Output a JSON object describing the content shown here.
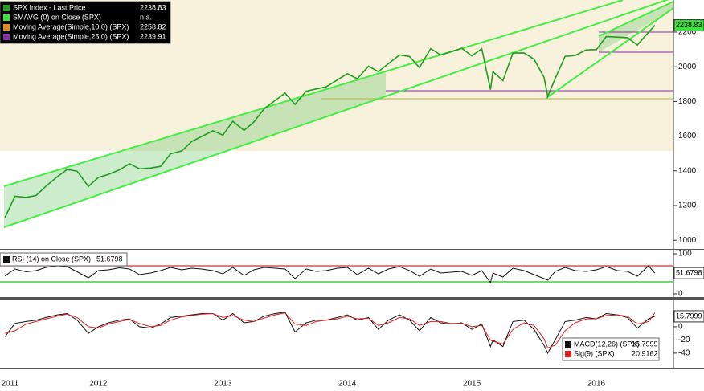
{
  "chart_data": [
    {
      "type": "line",
      "title": null,
      "x": [
        2011.75,
        2011.83,
        2011.92,
        2012.0,
        2012.08,
        2012.17,
        2012.25,
        2012.33,
        2012.42,
        2012.5,
        2012.58,
        2012.67,
        2012.75,
        2012.83,
        2012.92,
        2013.0,
        2013.08,
        2013.17,
        2013.25,
        2013.33,
        2013.42,
        2013.5,
        2013.58,
        2013.67,
        2013.75,
        2013.83,
        2013.92,
        2014.0,
        2014.08,
        2014.17,
        2014.25,
        2014.33,
        2014.42,
        2014.5,
        2014.58,
        2014.67,
        2014.75,
        2014.83,
        2014.92,
        2015.0,
        2015.08,
        2015.17,
        2015.25,
        2015.33,
        2015.42,
        2015.5,
        2015.58,
        2015.65,
        2015.67,
        2015.75,
        2015.83,
        2015.92,
        2016.0,
        2016.08,
        2016.11,
        2016.17,
        2016.25,
        2016.33,
        2016.42,
        2016.5,
        2016.58,
        2016.67,
        2016.75,
        2016.83,
        2016.92,
        2016.97
      ],
      "series": [
        {
          "name": "SPX Index - Last Price",
          "color": "#1f9e1f",
          "values": [
            1131,
            1253,
            1247,
            1258,
            1312,
            1366,
            1408,
            1398,
            1310,
            1362,
            1379,
            1406,
            1441,
            1412,
            1416,
            1426,
            1498,
            1515,
            1569,
            1598,
            1631,
            1606,
            1686,
            1633,
            1682,
            1757,
            1806,
            1848,
            1783,
            1859,
            1872,
            1884,
            1924,
            1960,
            1931,
            2003,
            1972,
            2018,
            2068,
            2059,
            1995,
            2105,
            2068,
            2086,
            2107,
            2063,
            2104,
            1868,
            1972,
            1920,
            2079,
            2080,
            2044,
            1940,
            1829,
            1932,
            2060,
            2065,
            2097,
            2099,
            2174,
            2171,
            2168,
            2126,
            2199,
            2238.83
          ]
        }
      ],
      "legend_extra": [
        {
          "name": "SMAVG (0) on Close (SPX)",
          "color": "#3fe03f",
          "value": "n.a."
        },
        {
          "name": "Moving Average(Simple,10,0) (SPX)",
          "color": "#e08a20",
          "value": 2258.82
        },
        {
          "name": "Moving Average(Simple,25,0) (SPX)",
          "color": "#8a2aa8",
          "value": 2239.91
        }
      ],
      "xlim": [
        2011.71,
        2017.12
      ],
      "ylim": [
        950,
        2385
      ],
      "yticks": [
        1000,
        1200,
        1400,
        1600,
        1800,
        2000,
        2200
      ]
    },
    {
      "type": "line",
      "x": [
        2011.75,
        2011.83,
        2011.92,
        2012.0,
        2012.08,
        2012.17,
        2012.25,
        2012.33,
        2012.42,
        2012.5,
        2012.58,
        2012.67,
        2012.75,
        2012.83,
        2012.92,
        2013.0,
        2013.08,
        2013.17,
        2013.25,
        2013.33,
        2013.42,
        2013.5,
        2013.58,
        2013.67,
        2013.75,
        2013.83,
        2013.92,
        2014.0,
        2014.08,
        2014.17,
        2014.25,
        2014.33,
        2014.42,
        2014.5,
        2014.58,
        2014.67,
        2014.75,
        2014.83,
        2014.92,
        2015.0,
        2015.08,
        2015.17,
        2015.25,
        2015.33,
        2015.42,
        2015.5,
        2015.58,
        2015.65,
        2015.67,
        2015.75,
        2015.83,
        2015.92,
        2016.0,
        2016.08,
        2016.11,
        2016.17,
        2016.25,
        2016.33,
        2016.42,
        2016.5,
        2016.58,
        2016.67,
        2016.75,
        2016.83,
        2016.92,
        2016.97
      ],
      "series": [
        {
          "name": "RSI (14) on Close (SPX)",
          "color": "#111111",
          "values": [
            45,
            62,
            55,
            58,
            66,
            70,
            68,
            55,
            40,
            58,
            60,
            65,
            62,
            48,
            52,
            58,
            66,
            60,
            64,
            62,
            58,
            50,
            66,
            46,
            60,
            66,
            64,
            62,
            38,
            62,
            56,
            58,
            64,
            66,
            48,
            64,
            50,
            62,
            68,
            58,
            44,
            62,
            52,
            54,
            56,
            46,
            58,
            28,
            52,
            42,
            64,
            58,
            48,
            38,
            34,
            56,
            66,
            58,
            56,
            60,
            68,
            58,
            56,
            44,
            70,
            51.6798
          ]
        }
      ],
      "levels": [
        {
          "value": 70,
          "color": "#d03030"
        },
        {
          "value": 30,
          "color": "#22c022"
        }
      ],
      "xlim": [
        2011.71,
        2017.12
      ],
      "ylim": [
        -8,
        108
      ],
      "yticks": [
        0,
        100
      ]
    },
    {
      "type": "line",
      "x": [
        2011.75,
        2011.83,
        2011.92,
        2012.0,
        2012.08,
        2012.17,
        2012.25,
        2012.33,
        2012.42,
        2012.5,
        2012.58,
        2012.67,
        2012.75,
        2012.83,
        2012.92,
        2013.0,
        2013.08,
        2013.17,
        2013.25,
        2013.33,
        2013.42,
        2013.5,
        2013.58,
        2013.67,
        2013.75,
        2013.83,
        2013.92,
        2014.0,
        2014.08,
        2014.17,
        2014.25,
        2014.33,
        2014.42,
        2014.5,
        2014.58,
        2014.67,
        2014.75,
        2014.83,
        2014.92,
        2015.0,
        2015.08,
        2015.17,
        2015.25,
        2015.33,
        2015.42,
        2015.5,
        2015.58,
        2015.65,
        2015.67,
        2015.75,
        2015.83,
        2015.92,
        2016.0,
        2016.08,
        2016.11,
        2016.17,
        2016.25,
        2016.33,
        2016.42,
        2016.5,
        2016.58,
        2016.67,
        2016.75,
        2016.83,
        2016.92,
        2016.97
      ],
      "series": [
        {
          "name": "MACD(12,26) (SPX)",
          "color": "#111111",
          "values": [
            -15,
            5,
            8,
            10,
            14,
            18,
            20,
            10,
            -10,
            0,
            6,
            10,
            12,
            0,
            -2,
            4,
            14,
            16,
            18,
            20,
            20,
            10,
            20,
            6,
            8,
            16,
            20,
            22,
            -8,
            6,
            10,
            10,
            14,
            18,
            10,
            14,
            -4,
            10,
            18,
            10,
            -6,
            14,
            6,
            4,
            6,
            -4,
            4,
            -30,
            -20,
            -30,
            8,
            10,
            -4,
            -28,
            -40,
            -20,
            8,
            10,
            14,
            12,
            20,
            18,
            14,
            -2,
            12,
            15.7999
          ]
        },
        {
          "name": "Sig(9) (SPX)",
          "color": "#e02020",
          "values": [
            -10,
            -6,
            4,
            8,
            12,
            16,
            19,
            14,
            0,
            -2,
            4,
            8,
            11,
            5,
            0,
            2,
            10,
            15,
            17,
            19,
            20,
            14,
            17,
            10,
            8,
            13,
            18,
            21,
            4,
            2,
            8,
            10,
            12,
            16,
            12,
            13,
            2,
            6,
            14,
            12,
            2,
            8,
            8,
            5,
            5,
            0,
            2,
            -20,
            -22,
            -26,
            -4,
            6,
            2,
            -18,
            -32,
            -28,
            -6,
            6,
            12,
            12,
            17,
            18,
            16,
            4,
            8,
            20.9162
          ]
        }
      ],
      "xlim": [
        2011.71,
        2017.12
      ],
      "ylim": [
        -62,
        40
      ],
      "yticks": [
        -40,
        -20,
        0
      ],
      "xticks": [
        {
          "value": 2011.79,
          "label": "2011"
        },
        {
          "value": 2012.5,
          "label": "2012"
        },
        {
          "value": 2013.5,
          "label": "2013"
        },
        {
          "value": 2014.5,
          "label": "2014"
        },
        {
          "value": 2015.5,
          "label": "2015"
        },
        {
          "value": 2016.5,
          "label": "2016"
        }
      ]
    }
  ]
}
